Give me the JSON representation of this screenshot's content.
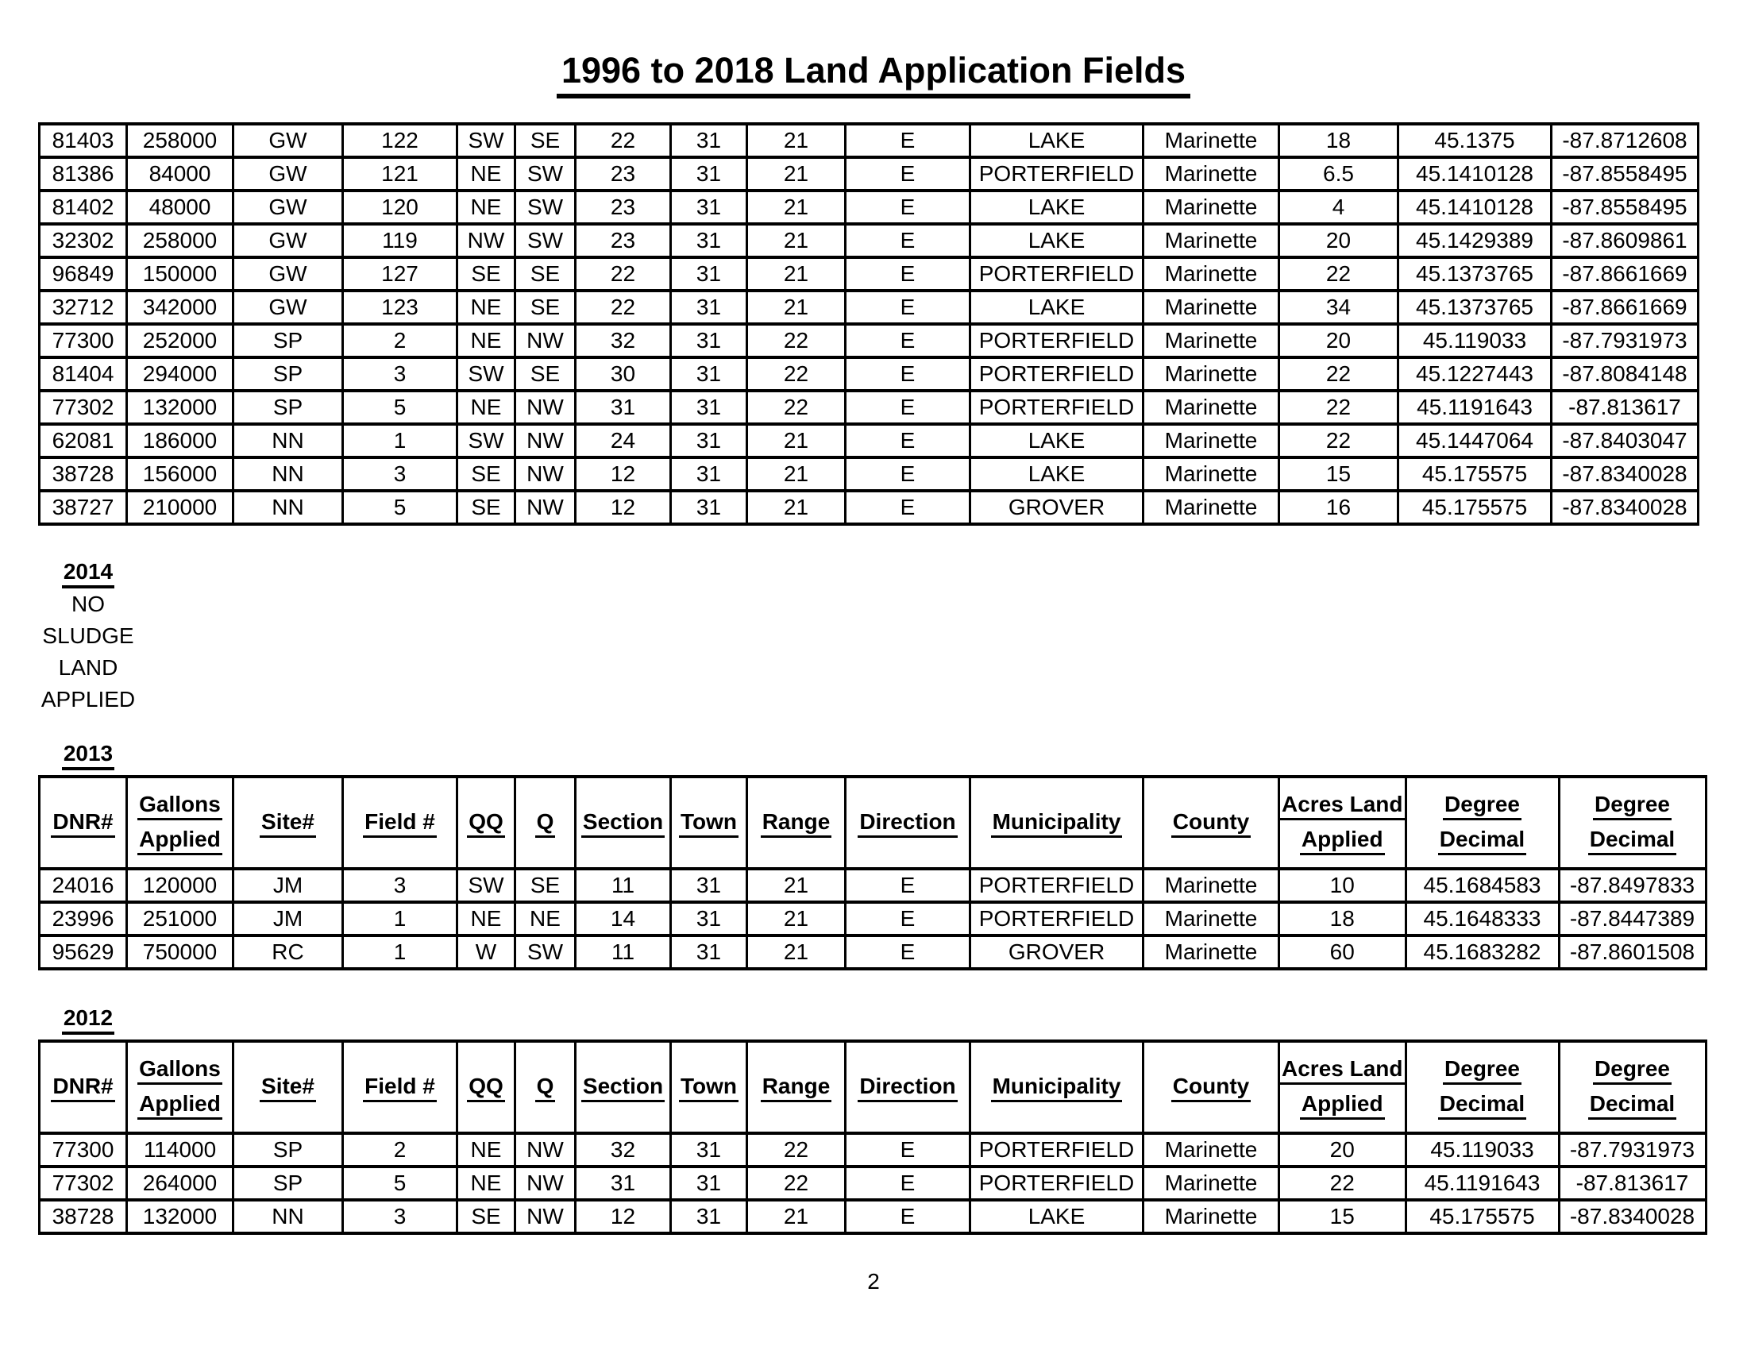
{
  "title": "1996 to 2018 Land Application Fields",
  "page_number": "2",
  "colors": {
    "text": "#000000",
    "background": "#ffffff",
    "border": "#000000"
  },
  "columns": [
    "DNR#",
    "Gallons\nApplied",
    "Site#",
    "Field #",
    "QQ",
    "Q",
    "Section",
    "Town",
    "Range",
    "Direction",
    "Municipality",
    "County",
    "Acres Land\nApplied",
    "Degree\nDecimal",
    "Degree\nDecimal"
  ],
  "top_table": {
    "rows": [
      [
        "81403",
        "258000",
        "GW",
        "122",
        "SW",
        "SE",
        "22",
        "31",
        "21",
        "E",
        "LAKE",
        "Marinette",
        "18",
        "45.1375",
        "-87.8712608"
      ],
      [
        "81386",
        "84000",
        "GW",
        "121",
        "NE",
        "SW",
        "23",
        "31",
        "21",
        "E",
        "PORTERFIELD",
        "Marinette",
        "6.5",
        "45.1410128",
        "-87.8558495"
      ],
      [
        "81402",
        "48000",
        "GW",
        "120",
        "NE",
        "SW",
        "23",
        "31",
        "21",
        "E",
        "LAKE",
        "Marinette",
        "4",
        "45.1410128",
        "-87.8558495"
      ],
      [
        "32302",
        "258000",
        "GW",
        "119",
        "NW",
        "SW",
        "23",
        "31",
        "21",
        "E",
        "LAKE",
        "Marinette",
        "20",
        "45.1429389",
        "-87.8609861"
      ],
      [
        "96849",
        "150000",
        "GW",
        "127",
        "SE",
        "SE",
        "22",
        "31",
        "21",
        "E",
        "PORTERFIELD",
        "Marinette",
        "22",
        "45.1373765",
        "-87.8661669"
      ],
      [
        "32712",
        "342000",
        "GW",
        "123",
        "NE",
        "SE",
        "22",
        "31",
        "21",
        "E",
        "LAKE",
        "Marinette",
        "34",
        "45.1373765",
        "-87.8661669"
      ],
      [
        "77300",
        "252000",
        "SP",
        "2",
        "NE",
        "NW",
        "32",
        "31",
        "22",
        "E",
        "PORTERFIELD",
        "Marinette",
        "20",
        "45.119033",
        "-87.7931973"
      ],
      [
        "81404",
        "294000",
        "SP",
        "3",
        "SW",
        "SE",
        "30",
        "31",
        "22",
        "E",
        "PORTERFIELD",
        "Marinette",
        "22",
        "45.1227443",
        "-87.8084148"
      ],
      [
        "77302",
        "132000",
        "SP",
        "5",
        "NE",
        "NW",
        "31",
        "31",
        "22",
        "E",
        "PORTERFIELD",
        "Marinette",
        "22",
        "45.1191643",
        "-87.813617"
      ],
      [
        "62081",
        "186000",
        "NN",
        "1",
        "SW",
        "NW",
        "24",
        "31",
        "21",
        "E",
        "LAKE",
        "Marinette",
        "22",
        "45.1447064",
        "-87.8403047"
      ],
      [
        "38728",
        "156000",
        "NN",
        "3",
        "SE",
        "NW",
        "12",
        "31",
        "21",
        "E",
        "LAKE",
        "Marinette",
        "15",
        "45.175575",
        "-87.8340028"
      ],
      [
        "38727",
        "210000",
        "NN",
        "5",
        "SE",
        "NW",
        "12",
        "31",
        "21",
        "E",
        "GROVER",
        "Marinette",
        "16",
        "45.175575",
        "-87.8340028"
      ]
    ]
  },
  "note_2014": {
    "year": "2014",
    "lines": [
      "NO",
      "SLUDGE",
      "LAND",
      "APPLIED"
    ]
  },
  "sections": [
    {
      "year": "2013",
      "rows": [
        [
          "24016",
          "120000",
          "JM",
          "3",
          "SW",
          "SE",
          "11",
          "31",
          "21",
          "E",
          "PORTERFIELD",
          "Marinette",
          "10",
          "45.1684583",
          "-87.8497833"
        ],
        [
          "23996",
          "251000",
          "JM",
          "1",
          "NE",
          "NE",
          "14",
          "31",
          "21",
          "E",
          "PORTERFIELD",
          "Marinette",
          "18",
          "45.1648333",
          "-87.8447389"
        ],
        [
          "95629",
          "750000",
          "RC",
          "1",
          "W",
          "SW",
          "11",
          "31",
          "21",
          "E",
          "GROVER",
          "Marinette",
          "60",
          "45.1683282",
          "-87.8601508"
        ]
      ]
    },
    {
      "year": "2012",
      "rows": [
        [
          "77300",
          "114000",
          "SP",
          "2",
          "NE",
          "NW",
          "32",
          "31",
          "22",
          "E",
          "PORTERFIELD",
          "Marinette",
          "20",
          "45.119033",
          "-87.7931973"
        ],
        [
          "77302",
          "264000",
          "SP",
          "5",
          "NE",
          "NW",
          "31",
          "31",
          "22",
          "E",
          "PORTERFIELD",
          "Marinette",
          "22",
          "45.1191643",
          "-87.813617"
        ],
        [
          "38728",
          "132000",
          "NN",
          "3",
          "SE",
          "NW",
          "12",
          "31",
          "21",
          "E",
          "LAKE",
          "Marinette",
          "15",
          "45.175575",
          "-87.8340028"
        ]
      ]
    }
  ]
}
